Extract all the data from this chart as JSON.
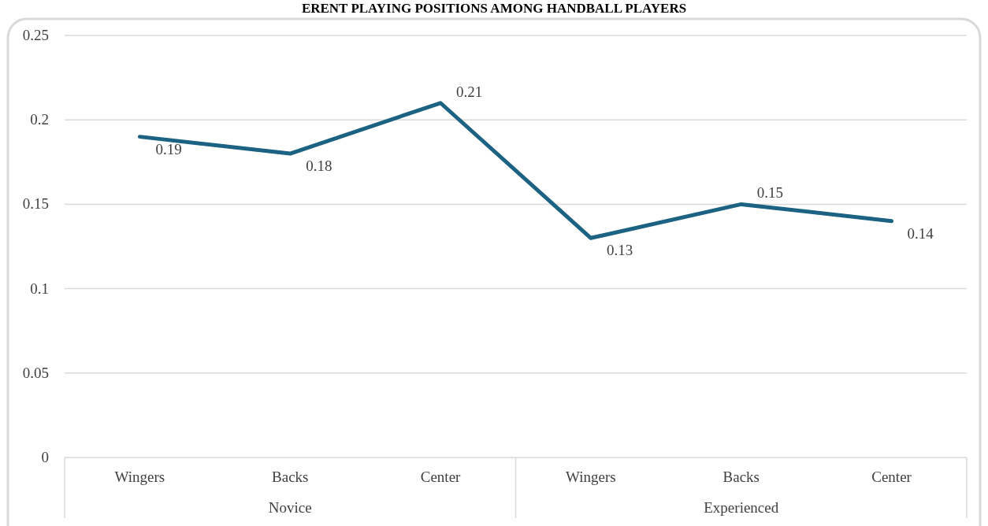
{
  "chart_data": {
    "type": "line",
    "title": "ERENT PLAYING POSITIONS AMONG HANDBALL PLAYERS",
    "categories": [
      "Wingers",
      "Backs",
      "Center",
      "Wingers",
      "Backs",
      "Center"
    ],
    "series": [
      {
        "color": "#1c6282",
        "values": [
          0.19,
          0.18,
          0.21,
          0.13,
          0.15,
          0.14
        ]
      }
    ],
    "annotations": [
      "Novice",
      "Experienced"
    ],
    "ylim": [
      0,
      0.25
    ],
    "yticks": [
      0,
      0.05,
      0.1,
      0.15,
      0.2,
      0.25
    ],
    "grid": "y",
    "data_labels": true,
    "marker": "none",
    "line_style": "solid"
  }
}
